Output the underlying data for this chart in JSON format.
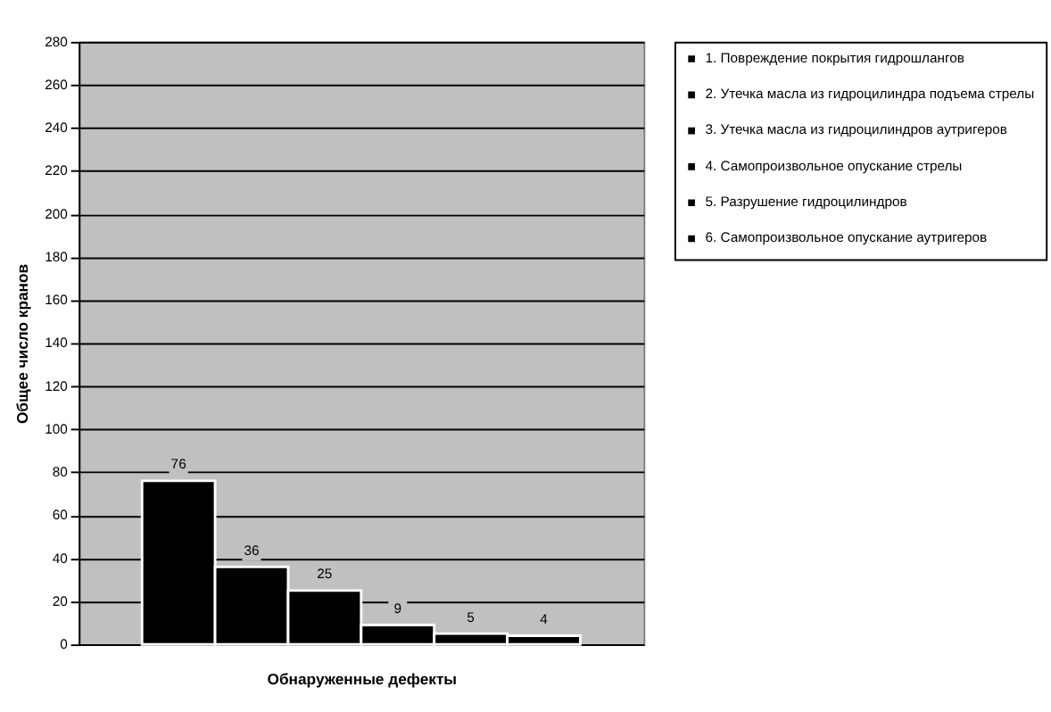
{
  "chart_data": {
    "type": "bar",
    "xlabel": "Обнаруженные дефекты",
    "ylabel": "Общее число кранов",
    "categories": [
      null
    ],
    "series": [
      {
        "name": "1. Повреждение покрытия гидрошлангов",
        "color": "#000000",
        "values": [
          76
        ]
      },
      {
        "name": "2. Утечка масла из гидроцилиндра подъема стрелы",
        "color": "#000000",
        "values": [
          36
        ]
      },
      {
        "name": "3. Утечка масла из гидроцилиндров аутригеров",
        "color": "#000000",
        "values": [
          25
        ]
      },
      {
        "name": "4. Самопроизвольное опускание стрелы",
        "color": "#000000",
        "values": [
          9
        ]
      },
      {
        "name": "5. Разрушение гидроцилиндров",
        "color": "#000000",
        "values": [
          5
        ]
      },
      {
        "name": "6. Самопроизвольное опускание аутригеров",
        "color": "#000000",
        "values": [
          4
        ]
      }
    ],
    "ylim": [
      0,
      280
    ],
    "yticks": [
      0,
      20,
      40,
      60,
      80,
      100,
      120,
      140,
      160,
      180,
      200,
      220,
      240,
      260,
      280
    ],
    "grid": "y",
    "legend": "right",
    "data_labels": true
  }
}
